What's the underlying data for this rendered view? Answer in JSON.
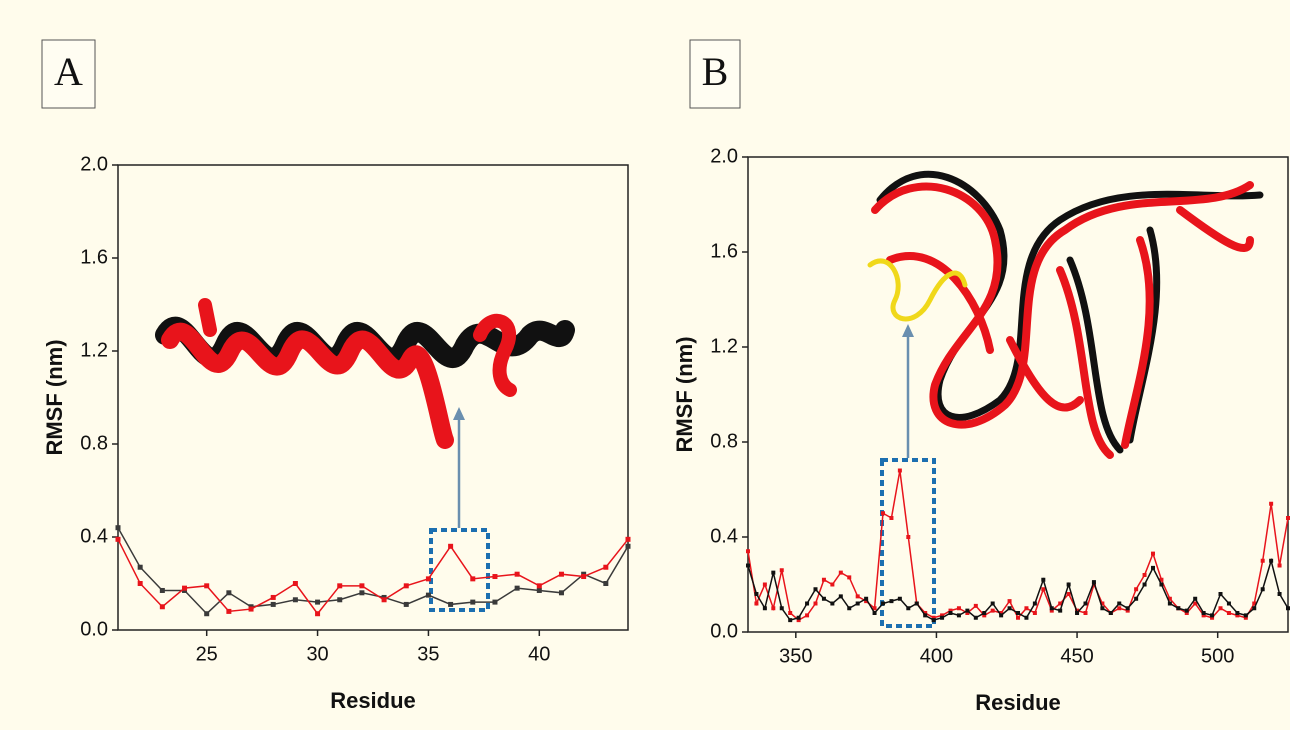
{
  "chart_data": [
    {
      "type": "line",
      "panel_label": "A",
      "xlabel": "Residue",
      "ylabel": "RMSF (nm)",
      "x": [
        21,
        22,
        23,
        24,
        25,
        26,
        27,
        28,
        29,
        30,
        31,
        32,
        33,
        34,
        35,
        36,
        37,
        38,
        39,
        40,
        41,
        42,
        43,
        44
      ],
      "series": [
        {
          "color": "#3a3a3a",
          "values": [
            0.44,
            0.27,
            0.17,
            0.17,
            0.07,
            0.16,
            0.1,
            0.11,
            0.13,
            0.12,
            0.13,
            0.16,
            0.14,
            0.11,
            0.15,
            0.11,
            0.12,
            0.12,
            0.18,
            0.17,
            0.16,
            0.24,
            0.2,
            0.36
          ]
        },
        {
          "color": "#e8141b",
          "values": [
            0.39,
            0.2,
            0.1,
            0.18,
            0.19,
            0.08,
            0.09,
            0.14,
            0.2,
            0.07,
            0.19,
            0.19,
            0.13,
            0.19,
            0.22,
            0.36,
            0.22,
            0.23,
            0.24,
            0.19,
            0.24,
            0.23,
            0.27,
            0.39
          ]
        }
      ],
      "xlim": [
        21,
        44
      ],
      "xticks": [
        25,
        30,
        35,
        40
      ],
      "ylim": [
        0,
        2
      ],
      "yticks": [
        {
          "value": 0,
          "label": "0.0"
        },
        0.4,
        0.8,
        1.2,
        1.6,
        {
          "value": 2,
          "label": "2.0"
        }
      ]
    },
    {
      "type": "line",
      "panel_label": "B",
      "xlabel": "Residue",
      "ylabel": "RMSF (nm)",
      "x": [
        333,
        336,
        339,
        342,
        345,
        348,
        351,
        354,
        357,
        360,
        363,
        366,
        369,
        372,
        375,
        378,
        381,
        384,
        387,
        390,
        393,
        396,
        399,
        402,
        405,
        408,
        411,
        414,
        417,
        420,
        423,
        426,
        429,
        432,
        435,
        438,
        441,
        444,
        447,
        450,
        453,
        456,
        459,
        462,
        465,
        468,
        471,
        474,
        477,
        480,
        483,
        486,
        489,
        492,
        495,
        498,
        501,
        504,
        507,
        510,
        513,
        516,
        519,
        522,
        525
      ],
      "series": [
        {
          "color": "#e8141b",
          "values": [
            0.34,
            0.12,
            0.2,
            0.1,
            0.26,
            0.08,
            0.05,
            0.07,
            0.12,
            0.22,
            0.2,
            0.25,
            0.23,
            0.15,
            0.13,
            0.1,
            0.5,
            0.48,
            0.68,
            0.4,
            0.12,
            0.08,
            0.06,
            0.07,
            0.09,
            0.1,
            0.08,
            0.11,
            0.07,
            0.09,
            0.08,
            0.13,
            0.06,
            0.1,
            0.08,
            0.18,
            0.09,
            0.12,
            0.16,
            0.09,
            0.08,
            0.2,
            0.12,
            0.08,
            0.1,
            0.09,
            0.18,
            0.24,
            0.33,
            0.22,
            0.14,
            0.1,
            0.08,
            0.12,
            0.07,
            0.06,
            0.1,
            0.08,
            0.07,
            0.06,
            0.12,
            0.3,
            0.54,
            0.28,
            0.48
          ]
        },
        {
          "color": "#111111",
          "values": [
            0.28,
            0.16,
            0.1,
            0.25,
            0.1,
            0.05,
            0.06,
            0.12,
            0.18,
            0.14,
            0.12,
            0.15,
            0.1,
            0.12,
            0.14,
            0.08,
            0.12,
            0.13,
            0.14,
            0.1,
            0.12,
            0.07,
            0.05,
            0.06,
            0.08,
            0.07,
            0.09,
            0.06,
            0.08,
            0.12,
            0.07,
            0.1,
            0.08,
            0.06,
            0.12,
            0.22,
            0.1,
            0.09,
            0.2,
            0.08,
            0.12,
            0.21,
            0.1,
            0.08,
            0.12,
            0.1,
            0.14,
            0.2,
            0.27,
            0.2,
            0.12,
            0.1,
            0.09,
            0.14,
            0.08,
            0.07,
            0.16,
            0.12,
            0.08,
            0.07,
            0.1,
            0.18,
            0.3,
            0.16,
            0.1
          ]
        }
      ],
      "xlim": [
        333,
        525
      ],
      "xticks": [
        350,
        400,
        450,
        500
      ],
      "ylim": [
        0,
        2
      ],
      "yticks": [
        {
          "value": 0,
          "label": "0.0"
        },
        0.4,
        0.8,
        1.2,
        1.6,
        {
          "value": 2,
          "label": "2.0"
        }
      ]
    }
  ]
}
